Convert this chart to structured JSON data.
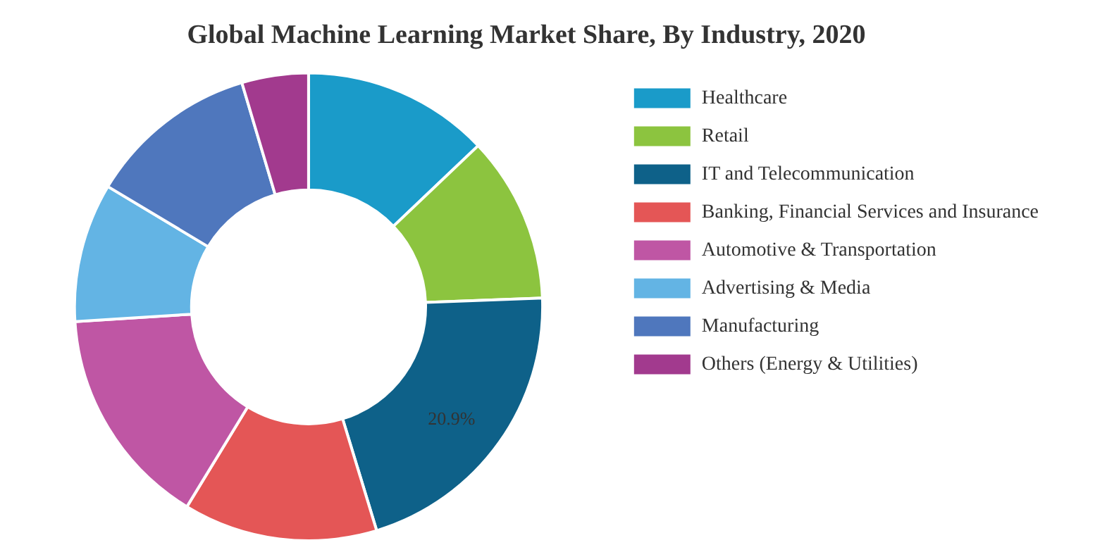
{
  "chart_data": {
    "type": "donut",
    "title": "Global Machine Learning Market Share, By Industry, 2020",
    "categories": [
      "Healthcare",
      "Retail",
      "IT and Telecommunication",
      "Banking, Financial Services and Insurance",
      "Automotive & Transportation",
      "Advertising & Media",
      "Manufacturing",
      "Others (Energy & Utilities)"
    ],
    "values": [
      12.9,
      11.5,
      20.9,
      13.4,
      15.3,
      9.6,
      11.8,
      4.6
    ],
    "value_labels": [
      null,
      null,
      "20.9%",
      null,
      null,
      null,
      null,
      null
    ],
    "colors": [
      "#1a9bc9",
      "#8cc43f",
      "#0e6189",
      "#e45656",
      "#bf56a4",
      "#63b4e4",
      "#4f77bd",
      "#a23a8e"
    ],
    "legend": "right"
  }
}
